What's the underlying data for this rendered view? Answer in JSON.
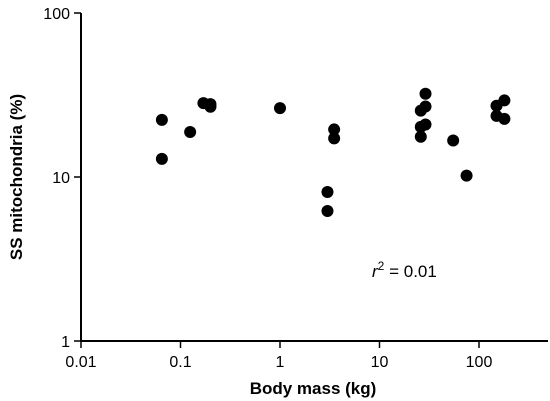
{
  "chart_data": {
    "type": "scatter",
    "x_scale": "log",
    "y_scale": "log",
    "xlabel": "Body mass (kg)",
    "ylabel": "SS mitochondria (%)",
    "xlim": [
      0.01,
      500
    ],
    "ylim": [
      1,
      100
    ],
    "x_ticks": [
      {
        "value": 0.01,
        "label": "0.01"
      },
      {
        "value": 0.1,
        "label": "0.1"
      },
      {
        "value": 1,
        "label": "1"
      },
      {
        "value": 10,
        "label": "10"
      },
      {
        "value": 100,
        "label": "100"
      }
    ],
    "y_ticks": [
      {
        "value": 1,
        "label": "1"
      },
      {
        "value": 10,
        "label": "10"
      },
      {
        "value": 100,
        "label": "100"
      }
    ],
    "grid": false,
    "legend": "none",
    "annotation": {
      "r_symbol": "r",
      "superscript": "2",
      "text": " = 0.01"
    },
    "points": [
      {
        "x": 0.065,
        "y": 22.3
      },
      {
        "x": 0.065,
        "y": 12.9
      },
      {
        "x": 0.125,
        "y": 18.8
      },
      {
        "x": 0.17,
        "y": 28.2
      },
      {
        "x": 0.2,
        "y": 27.8
      },
      {
        "x": 0.2,
        "y": 26.8
      },
      {
        "x": 1.0,
        "y": 26.3
      },
      {
        "x": 3.0,
        "y": 8.1
      },
      {
        "x": 3.0,
        "y": 6.2
      },
      {
        "x": 3.5,
        "y": 19.5
      },
      {
        "x": 3.5,
        "y": 17.2
      },
      {
        "x": 26,
        "y": 25.4
      },
      {
        "x": 26,
        "y": 20.2
      },
      {
        "x": 26,
        "y": 17.6
      },
      {
        "x": 29,
        "y": 32.2
      },
      {
        "x": 29,
        "y": 26.9
      },
      {
        "x": 29,
        "y": 20.9
      },
      {
        "x": 55,
        "y": 16.7
      },
      {
        "x": 75,
        "y": 10.2
      },
      {
        "x": 150,
        "y": 27.2
      },
      {
        "x": 150,
        "y": 23.6
      },
      {
        "x": 180,
        "y": 29.3
      },
      {
        "x": 180,
        "y": 22.6
      }
    ]
  }
}
